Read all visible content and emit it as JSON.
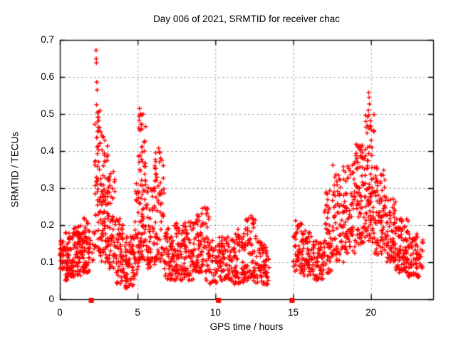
{
  "chart_data": {
    "type": "scatter",
    "title": "Day 006 of 2021, SRMTID for receiver chac",
    "xlabel": "GPS time / hours",
    "ylabel": "SRMTID / TECUs",
    "xlim": [
      0,
      24
    ],
    "ylim": [
      0,
      0.7
    ],
    "grid": true,
    "legend": "none",
    "marker": "plus",
    "marker_color": "#ff0000",
    "grid_color": "#aaaaaa",
    "axis_color": "#000000",
    "background_color": "#ffffff",
    "x_ticks": [
      0,
      5,
      10,
      15,
      20
    ],
    "x_tick_labels": [
      "0",
      "5",
      "10",
      "15",
      "20"
    ],
    "y_ticks": [
      0,
      0.1,
      0.2,
      0.3,
      0.4,
      0.5,
      0.6,
      0.7
    ],
    "y_tick_labels": [
      "0",
      "0.1",
      "0.2",
      "0.3",
      "0.4",
      "0.5",
      "0.6",
      "0.7"
    ],
    "envelope_format": [
      "hour_start",
      "hour_end",
      "y_min",
      "y_max",
      "n_points",
      "low_bias_skew"
    ],
    "density_envelope": [
      [
        0.0,
        0.3,
        0.08,
        0.17,
        28,
        1.1
      ],
      [
        0.3,
        0.8,
        0.05,
        0.18,
        60,
        1.2
      ],
      [
        0.8,
        1.5,
        0.06,
        0.2,
        85,
        1.2
      ],
      [
        1.5,
        1.95,
        0.07,
        0.22,
        55,
        1.2
      ],
      [
        1.95,
        2.25,
        0.1,
        0.2,
        8,
        1.0
      ],
      [
        2.25,
        2.6,
        0.13,
        0.52,
        55,
        1.4
      ],
      [
        2.6,
        3.1,
        0.1,
        0.44,
        80,
        1.4
      ],
      [
        3.1,
        3.55,
        0.08,
        0.34,
        55,
        1.3
      ],
      [
        3.55,
        4.1,
        0.04,
        0.22,
        60,
        1.2
      ],
      [
        4.1,
        4.8,
        0.03,
        0.17,
        70,
        1.2
      ],
      [
        4.8,
        5.05,
        0.06,
        0.32,
        25,
        1.2
      ],
      [
        5.05,
        5.55,
        0.1,
        0.5,
        85,
        1.3
      ],
      [
        5.55,
        6.1,
        0.08,
        0.31,
        55,
        1.2
      ],
      [
        6.1,
        6.7,
        0.1,
        0.4,
        65,
        1.3
      ],
      [
        6.7,
        7.4,
        0.05,
        0.2,
        65,
        1.2
      ],
      [
        7.4,
        8.0,
        0.05,
        0.21,
        60,
        1.2
      ],
      [
        8.0,
        8.6,
        0.05,
        0.21,
        60,
        1.2
      ],
      [
        8.6,
        9.1,
        0.07,
        0.23,
        50,
        1.2
      ],
      [
        9.1,
        9.6,
        0.05,
        0.25,
        45,
        1.3
      ],
      [
        9.6,
        10.2,
        0.04,
        0.16,
        40,
        1.2
      ],
      [
        10.2,
        11.0,
        0.05,
        0.17,
        70,
        1.2
      ],
      [
        11.0,
        11.8,
        0.04,
        0.19,
        70,
        1.2
      ],
      [
        11.8,
        12.6,
        0.05,
        0.22,
        75,
        1.3
      ],
      [
        12.6,
        13.45,
        0.04,
        0.16,
        70,
        1.2
      ],
      [
        15.0,
        15.6,
        0.07,
        0.21,
        55,
        1.2
      ],
      [
        15.6,
        16.3,
        0.06,
        0.19,
        60,
        1.2
      ],
      [
        16.3,
        17.0,
        0.05,
        0.16,
        55,
        1.2
      ],
      [
        17.0,
        17.6,
        0.07,
        0.3,
        55,
        1.3
      ],
      [
        17.6,
        18.3,
        0.1,
        0.36,
        65,
        1.3
      ],
      [
        18.3,
        19.0,
        0.12,
        0.38,
        70,
        1.3
      ],
      [
        19.0,
        19.6,
        0.14,
        0.42,
        75,
        1.3
      ],
      [
        19.6,
        20.2,
        0.15,
        0.5,
        85,
        1.2
      ],
      [
        20.2,
        20.9,
        0.12,
        0.36,
        75,
        1.2
      ],
      [
        20.9,
        21.6,
        0.1,
        0.28,
        75,
        1.2
      ],
      [
        21.6,
        22.4,
        0.07,
        0.22,
        85,
        1.3
      ],
      [
        22.4,
        23.1,
        0.06,
        0.18,
        60,
        1.2
      ],
      [
        23.1,
        23.35,
        0.08,
        0.16,
        15,
        1.1
      ]
    ],
    "notable_points": [
      [
        2.33,
        0.672
      ],
      [
        2.34,
        0.649
      ],
      [
        2.35,
        0.638
      ],
      [
        2.37,
        0.586
      ],
      [
        2.4,
        0.565
      ],
      [
        2.36,
        0.525
      ],
      [
        2.42,
        0.503
      ],
      [
        2.46,
        0.492
      ],
      [
        2.55,
        0.463
      ],
      [
        2.62,
        0.452
      ],
      [
        2.7,
        0.443
      ],
      [
        2.75,
        0.438
      ],
      [
        5.12,
        0.515
      ],
      [
        5.18,
        0.5
      ],
      [
        5.22,
        0.472
      ],
      [
        5.08,
        0.462
      ],
      [
        6.35,
        0.408
      ],
      [
        6.4,
        0.398
      ],
      [
        3.45,
        0.345
      ],
      [
        8.85,
        0.228
      ],
      [
        9.32,
        0.248
      ],
      [
        12.3,
        0.225
      ],
      [
        15.15,
        0.212
      ],
      [
        17.55,
        0.362
      ],
      [
        20.65,
        0.335
      ],
      [
        19.85,
        0.558
      ],
      [
        19.88,
        0.545
      ],
      [
        19.9,
        0.527
      ],
      [
        19.83,
        0.51
      ],
      [
        19.87,
        0.497
      ],
      [
        19.95,
        0.468
      ],
      [
        20.02,
        0.458
      ]
    ],
    "baseline_squares_x": [
      2.02,
      10.2,
      14.93
    ],
    "data_gaps_hours": [
      [
        13.45,
        15.0
      ]
    ],
    "seed": 42
  }
}
